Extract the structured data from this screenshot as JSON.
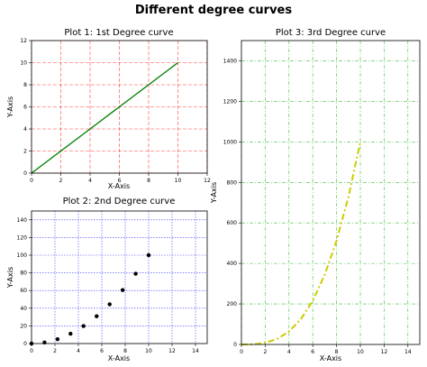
{
  "figure": {
    "title": "Different degree curves",
    "background": "#ffffff"
  },
  "chart_data": [
    {
      "id": "plot1",
      "type": "line",
      "title": "Plot 1: 1st Degree curve",
      "xlabel": "X-Axis",
      "ylabel": "Y-Axis",
      "xlim": [
        0,
        12
      ],
      "ylim": [
        0,
        12
      ],
      "xticks": [
        0,
        2,
        4,
        6,
        8,
        10,
        12
      ],
      "yticks": [
        0,
        2,
        4,
        6,
        8,
        10,
        12
      ],
      "grid": {
        "on": true,
        "color": "#ff0000",
        "style": "dashed"
      },
      "series": [
        {
          "x": [
            0,
            1,
            2,
            3,
            4,
            5,
            6,
            7,
            8,
            9,
            10
          ],
          "values": [
            0,
            1,
            2,
            3,
            4,
            5,
            6,
            7,
            8,
            9,
            10
          ],
          "color": "#008000",
          "style": "solid"
        }
      ]
    },
    {
      "id": "plot2",
      "type": "scatter",
      "title": "Plot 2: 2nd Degree curve",
      "xlabel": "X-Axis",
      "ylabel": "Y-Axis",
      "xlim": [
        0,
        15
      ],
      "ylim": [
        0,
        150
      ],
      "xticks": [
        0,
        2,
        4,
        6,
        8,
        10,
        12,
        14
      ],
      "yticks": [
        0,
        20,
        40,
        60,
        80,
        100,
        120,
        140
      ],
      "grid": {
        "on": true,
        "color": "#0000ff",
        "style": "dotted"
      },
      "series": [
        {
          "x": [
            0,
            1.11,
            2.22,
            3.33,
            4.44,
            5.56,
            6.67,
            7.78,
            8.89,
            10
          ],
          "values": [
            0,
            1.2,
            4.9,
            11.1,
            19.8,
            30.9,
            44.4,
            60.5,
            79,
            100
          ],
          "color": "#000000",
          "marker": "circle"
        }
      ]
    },
    {
      "id": "plot3",
      "type": "line",
      "title": "Plot 3: 3rd Degree curve",
      "xlabel": "X-Axis",
      "ylabel": "Y-Axis",
      "xlim": [
        0,
        15
      ],
      "ylim": [
        0,
        1500
      ],
      "xticks": [
        0,
        2,
        4,
        6,
        8,
        10,
        12,
        14
      ],
      "yticks": [
        0,
        200,
        400,
        600,
        800,
        1000,
        1200,
        1400
      ],
      "grid": {
        "on": true,
        "color": "#00aa00",
        "style": "dashdot"
      },
      "series": [
        {
          "x": [
            0,
            1,
            2,
            3,
            4,
            5,
            6,
            7,
            8,
            9,
            10
          ],
          "values": [
            0,
            1,
            8,
            27,
            64,
            125,
            216,
            343,
            512,
            729,
            1000
          ],
          "color": "#cccc00",
          "style": "dashdot"
        }
      ]
    }
  ]
}
